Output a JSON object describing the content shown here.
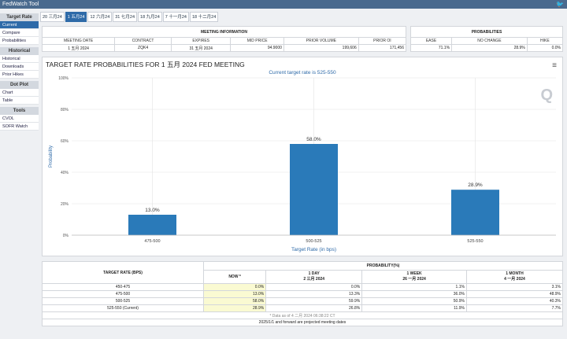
{
  "app": {
    "title": "FedWatch Tool"
  },
  "sidebar": {
    "groups": [
      {
        "title": "Target Rate",
        "items": [
          "Current",
          "Compare",
          "Probabilities"
        ]
      },
      {
        "title": "Historical",
        "items": [
          "Historical",
          "Downloads",
          "Prior Hikes"
        ]
      },
      {
        "title": "Dot Plot",
        "items": [
          "Chart",
          "Table"
        ]
      },
      {
        "title": "Tools",
        "items": [
          "CVOL",
          "SOFR Watch"
        ]
      }
    ]
  },
  "tabs": [
    "20 三月24",
    "1 五月24",
    "12 六月24",
    "31 七月24",
    "18 九月24",
    "7 十一月24",
    "18 十二月24"
  ],
  "meeting_info": {
    "header": "MEETING INFORMATION",
    "columns": [
      "MEETING DATE",
      "CONTRACT",
      "EXPIRES",
      "MID PRICE",
      "PRIOR VOLUME",
      "PRIOR OI"
    ],
    "values": [
      "1 五月 2024",
      "ZQK4",
      "31 五月 2024",
      "94.9000",
      "199,606",
      "171,456"
    ]
  },
  "probabilities": {
    "header": "PROBABILITIES",
    "columns": [
      "EASE",
      "NO CHANGE",
      "HIKE"
    ],
    "values": [
      "71.1%",
      "28.9%",
      "0.0%"
    ]
  },
  "chart_data": {
    "type": "bar",
    "title": "TARGET RATE PROBABILITIES FOR 1 五月 2024 FED MEETING",
    "subtitle": "Current target rate is 525-550",
    "xlabel": "Target Rate (in bps)",
    "ylabel": "Probability",
    "categories": [
      "475-500",
      "500-525",
      "525-550"
    ],
    "values": [
      13.0,
      58.0,
      28.9
    ],
    "value_labels": [
      "13.0%",
      "58.0%",
      "28.9%"
    ],
    "ylim": [
      0,
      100
    ],
    "yticks": [
      0,
      20,
      40,
      60,
      80,
      100
    ],
    "ytick_labels": [
      "0%",
      "20%",
      "40%",
      "60%",
      "80%",
      "100%"
    ],
    "grid": true,
    "bar_color": "#2a7ab9"
  },
  "prob_table": {
    "rate_header": "TARGET RATE (BPS)",
    "prob_header": "PROBABILITY(%)",
    "cols": [
      {
        "line1": "NOW *",
        "line2": ""
      },
      {
        "line1": "1 DAY",
        "line2": "2 三月 2024"
      },
      {
        "line1": "1 WEEK",
        "line2": "26 一月 2024"
      },
      {
        "line1": "1 MONTH",
        "line2": "4 一月 2024"
      }
    ],
    "rows": [
      {
        "rate": "450-475",
        "vals": [
          "0.0%",
          "0.0%",
          "1.1%",
          "3.1%"
        ]
      },
      {
        "rate": "475-500",
        "vals": [
          "13.0%",
          "13.3%",
          "36.0%",
          "48.9%"
        ]
      },
      {
        "rate": "500-525",
        "vals": [
          "58.0%",
          "59.9%",
          "50.9%",
          "40.3%"
        ]
      },
      {
        "rate": "525-550 (Current)",
        "vals": [
          "28.9%",
          "26.8%",
          "11.9%",
          "7.7%"
        ]
      }
    ],
    "data_as_of": "* Data as of 4 二月 2024 06:38:22 CT",
    "footnote": "2025/1/1 and forward are projected meeting dates"
  }
}
